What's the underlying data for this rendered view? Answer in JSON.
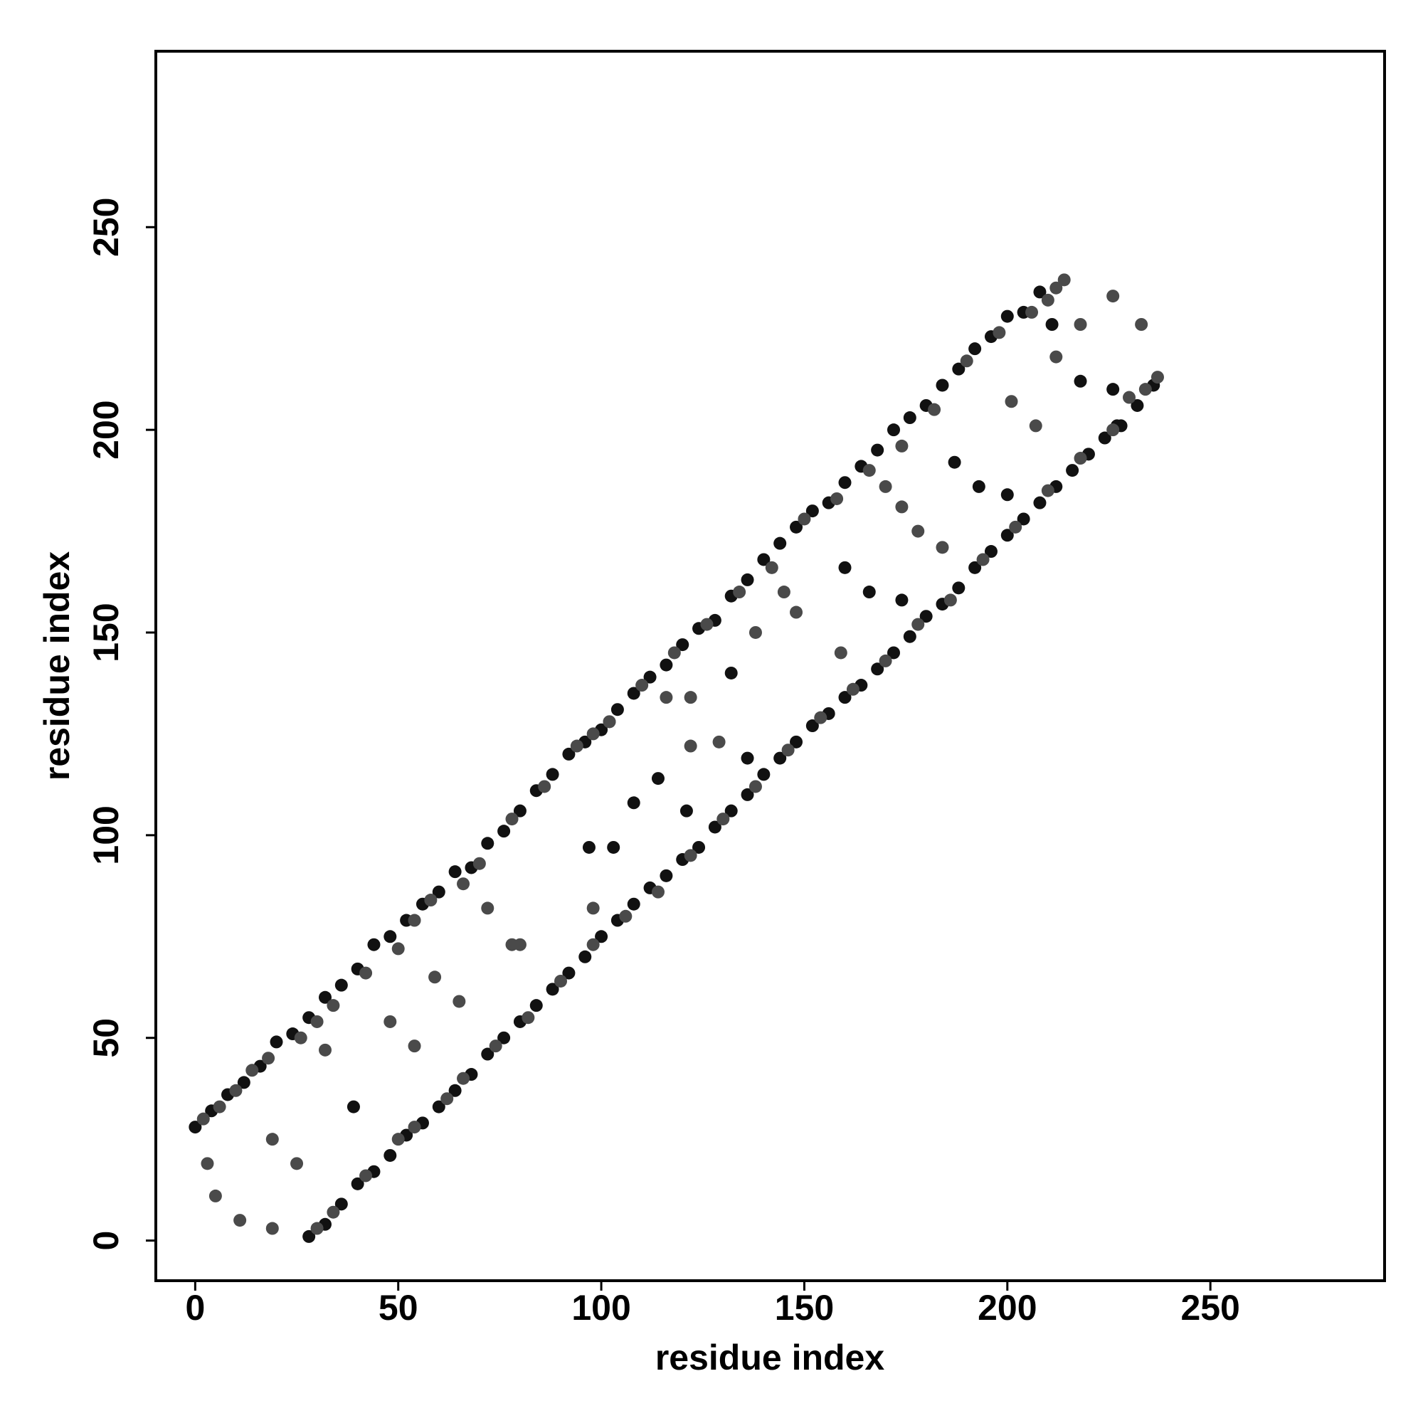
{
  "chart_data": {
    "type": "scatter",
    "xlabel": "residue index",
    "ylabel": "residue index",
    "xlim": [
      -9.7,
      292.9
    ],
    "ylim": [
      -9.9,
      293.4
    ],
    "xticks": [
      0,
      50,
      100,
      150,
      200,
      250
    ],
    "yticks": [
      0,
      50,
      100,
      150,
      200,
      250
    ],
    "grid": false,
    "series": [
      {
        "color": "#111111",
        "x": [
          0,
          4,
          8,
          12,
          16,
          20,
          24,
          28,
          32,
          36,
          40,
          44,
          48,
          52,
          56,
          60,
          64,
          68,
          72,
          76,
          80,
          84,
          88,
          92,
          96,
          100,
          104,
          108,
          112,
          116,
          120,
          124,
          128,
          132,
          136,
          140,
          144,
          148,
          152,
          156,
          160,
          164,
          168,
          172,
          176,
          180,
          184,
          188,
          192,
          196,
          200,
          204,
          208,
          28,
          32,
          36,
          40,
          44,
          48,
          52,
          56,
          60,
          64,
          68,
          72,
          76,
          80,
          84,
          88,
          92,
          96,
          100,
          104,
          108,
          112,
          116,
          120,
          124,
          128,
          132,
          136,
          140,
          144,
          148,
          152,
          156,
          160,
          164,
          168,
          172,
          176,
          180,
          184,
          188,
          192,
          196,
          200,
          204,
          208,
          212,
          216,
          220,
          224,
          228,
          232,
          236,
          39,
          97,
          103,
          108,
          114,
          121,
          132,
          136,
          160,
          166,
          174,
          187,
          193,
          200,
          211,
          218,
          226,
          227
        ],
        "values": [
          28,
          32,
          36,
          39,
          43,
          49,
          51,
          55,
          60,
          63,
          67,
          73,
          75,
          79,
          83,
          86,
          91,
          92,
          98,
          101,
          106,
          111,
          115,
          120,
          123,
          126,
          131,
          135,
          139,
          142,
          147,
          151,
          153,
          159,
          163,
          168,
          172,
          176,
          180,
          182,
          187,
          191,
          195,
          200,
          203,
          206,
          211,
          215,
          220,
          223,
          228,
          229,
          234,
          1,
          4,
          9,
          14,
          17,
          21,
          26,
          29,
          33,
          37,
          41,
          46,
          50,
          54,
          58,
          62,
          66,
          70,
          75,
          79,
          83,
          87,
          90,
          94,
          97,
          102,
          106,
          110,
          115,
          119,
          123,
          127,
          130,
          134,
          137,
          141,
          145,
          149,
          154,
          157,
          161,
          166,
          170,
          174,
          178,
          182,
          186,
          190,
          194,
          198,
          201,
          206,
          211,
          33,
          97,
          97,
          108,
          114,
          106,
          140,
          119,
          166,
          160,
          158,
          192,
          186,
          184,
          226,
          212,
          210,
          201
        ]
      },
      {
        "color": "#4a4a4a",
        "x": [
          2,
          6,
          10,
          14,
          18,
          26,
          30,
          34,
          42,
          50,
          54,
          58,
          66,
          70,
          78,
          86,
          94,
          98,
          102,
          110,
          118,
          126,
          134,
          142,
          150,
          158,
          166,
          174,
          182,
          190,
          198,
          206,
          210,
          212,
          214,
          30,
          34,
          42,
          50,
          54,
          62,
          66,
          74,
          82,
          90,
          98,
          106,
          114,
          122,
          130,
          138,
          146,
          154,
          162,
          170,
          178,
          186,
          194,
          202,
          210,
          218,
          226,
          230,
          234,
          237,
          3,
          5,
          11,
          19,
          19,
          25,
          32,
          48,
          54,
          59,
          65,
          72,
          78,
          80,
          98,
          102,
          116,
          122,
          122,
          129,
          138,
          145,
          148,
          159,
          170,
          174,
          178,
          184,
          201,
          207,
          212,
          218,
          226,
          233
        ],
        "values": [
          30,
          33,
          37,
          42,
          45,
          50,
          54,
          58,
          66,
          72,
          79,
          84,
          88,
          93,
          104,
          112,
          122,
          125,
          128,
          137,
          145,
          152,
          160,
          166,
          178,
          183,
          190,
          196,
          205,
          217,
          224,
          229,
          232,
          235,
          237,
          3,
          7,
          16,
          25,
          28,
          35,
          40,
          48,
          55,
          64,
          73,
          80,
          86,
          95,
          104,
          112,
          121,
          129,
          136,
          143,
          152,
          158,
          168,
          176,
          185,
          193,
          200,
          208,
          210,
          213,
          19,
          11,
          5,
          3,
          25,
          19,
          47,
          54,
          48,
          65,
          59,
          82,
          73,
          73,
          82,
          128,
          134,
          122,
          134,
          123,
          150,
          160,
          155,
          145,
          186,
          181,
          175,
          171,
          207,
          201,
          218,
          226,
          233,
          226
        ]
      }
    ]
  }
}
